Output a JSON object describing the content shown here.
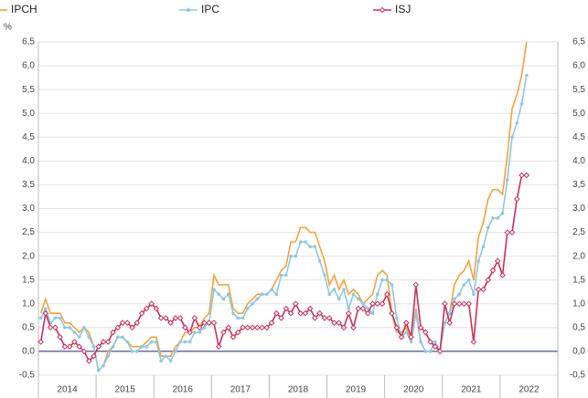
{
  "chart_data": {
    "type": "line",
    "unit_label": "%",
    "year_groups": [
      "2014",
      "2015",
      "2016",
      "2017",
      "2018",
      "2019",
      "2020",
      "2021",
      "2022"
    ],
    "ylim": [
      -0.5,
      6.5
    ],
    "yticks": [
      {
        "value": -0.5,
        "label": "-0,5"
      },
      {
        "value": 0,
        "label": "0,0"
      },
      {
        "value": 0.5,
        "label": "0,5"
      },
      {
        "value": 1,
        "label": "1,0"
      },
      {
        "value": 1.5,
        "label": "1,5"
      },
      {
        "value": 2,
        "label": "2,0"
      },
      {
        "value": 2.5,
        "label": "2,5"
      },
      {
        "value": 3,
        "label": "3,0"
      },
      {
        "value": 3.5,
        "label": "3,5"
      },
      {
        "value": 4,
        "label": "4,0"
      },
      {
        "value": 4.5,
        "label": "4,5"
      },
      {
        "value": 5,
        "label": "5,0"
      },
      {
        "value": 5.5,
        "label": "5,5"
      },
      {
        "value": 6,
        "label": "6,0"
      },
      {
        "value": 6.5,
        "label": "6,5"
      }
    ],
    "grid": true,
    "series": [
      {
        "name": "IPCH",
        "color": "#f5a33a",
        "marker": "none",
        "values": [
          0.8,
          1.1,
          0.8,
          0.8,
          0.8,
          0.6,
          0.6,
          0.5,
          0.4,
          0.5,
          0.4,
          0.1,
          -0.4,
          -0.3,
          0.0,
          0.1,
          0.3,
          0.3,
          0.2,
          0.1,
          0.1,
          0.1,
          0.2,
          0.3,
          0.3,
          -0.1,
          -0.1,
          -0.1,
          0.1,
          0.2,
          0.4,
          0.4,
          0.5,
          0.5,
          0.7,
          0.8,
          1.6,
          1.4,
          1.4,
          1.4,
          0.9,
          0.8,
          0.8,
          1.0,
          1.1,
          1.2,
          1.2,
          1.2,
          1.3,
          1.5,
          1.7,
          1.8,
          2.3,
          2.3,
          2.6,
          2.6,
          2.5,
          2.5,
          2.2,
          1.9,
          1.4,
          1.6,
          1.3,
          1.5,
          1.2,
          1.3,
          1.2,
          1.0,
          1.1,
          1.2,
          1.6,
          1.7,
          1.6,
          0.8,
          0.4,
          0.4,
          0.5,
          0.2,
          0.9,
          0.2,
          0.0,
          0.0,
          0.2,
          0.0,
          0.6,
          0.8,
          1.4,
          1.6,
          1.7,
          1.9,
          1.5,
          2.4,
          2.7,
          3.2,
          3.4,
          3.4,
          3.3,
          4.1,
          5.1,
          5.4,
          5.8,
          6.5
        ]
      },
      {
        "name": "IPC",
        "color": "#8ec8e6",
        "marker": "circle",
        "values": [
          0.7,
          0.9,
          0.6,
          0.7,
          0.7,
          0.5,
          0.5,
          0.4,
          0.3,
          0.5,
          0.3,
          0.1,
          -0.4,
          -0.3,
          -0.1,
          0.1,
          0.3,
          0.3,
          0.2,
          0.0,
          0.0,
          0.1,
          0.1,
          0.2,
          0.2,
          -0.2,
          -0.1,
          -0.2,
          0.0,
          0.2,
          0.2,
          0.2,
          0.4,
          0.4,
          0.5,
          0.6,
          1.3,
          1.2,
          1.1,
          1.2,
          0.8,
          0.7,
          0.7,
          0.9,
          1.0,
          1.1,
          1.2,
          1.2,
          1.3,
          1.2,
          1.6,
          1.6,
          2.0,
          2.0,
          2.3,
          2.3,
          2.2,
          2.2,
          1.9,
          1.6,
          1.2,
          1.3,
          1.1,
          1.3,
          0.9,
          1.2,
          1.1,
          1.0,
          0.9,
          0.8,
          1.2,
          1.5,
          1.5,
          1.4,
          0.7,
          0.3,
          0.4,
          0.2,
          0.8,
          0.2,
          0.0,
          0.0,
          0.2,
          0.0,
          0.6,
          0.8,
          1.1,
          1.2,
          1.4,
          1.5,
          1.2,
          1.9,
          2.2,
          2.6,
          2.8,
          2.8,
          2.9,
          3.6,
          4.5,
          4.8,
          5.2,
          5.8
        ]
      },
      {
        "name": "ISJ",
        "color": "#c9305a",
        "marker": "diamond",
        "values": [
          0.2,
          0.8,
          0.5,
          0.5,
          0.3,
          0.1,
          0.1,
          0.2,
          0.1,
          0.0,
          -0.2,
          -0.1,
          0.1,
          0.2,
          0.2,
          0.4,
          0.5,
          0.6,
          0.6,
          0.5,
          0.6,
          0.8,
          0.9,
          1.0,
          0.9,
          0.7,
          0.7,
          0.6,
          0.7,
          0.7,
          0.5,
          0.4,
          0.7,
          0.5,
          0.6,
          0.6,
          0.6,
          0.1,
          0.4,
          0.5,
          0.3,
          0.4,
          0.5,
          0.5,
          0.5,
          0.5,
          0.5,
          0.5,
          0.6,
          0.8,
          0.7,
          0.9,
          0.8,
          1.0,
          0.8,
          0.8,
          0.9,
          0.7,
          0.8,
          0.7,
          0.7,
          0.6,
          0.6,
          0.5,
          0.8,
          0.5,
          0.9,
          0.9,
          0.8,
          1.0,
          1.0,
          1.0,
          1.2,
          0.8,
          0.5,
          0.3,
          0.6,
          0.3,
          1.4,
          0.5,
          0.4,
          0.2,
          0.1,
          0.0,
          1.0,
          0.6,
          1.0,
          1.0,
          1.0,
          1.0,
          0.2,
          1.3,
          1.3,
          1.5,
          1.7,
          1.9,
          1.6,
          2.5,
          2.5,
          3.2,
          3.7,
          3.7
        ]
      }
    ]
  }
}
